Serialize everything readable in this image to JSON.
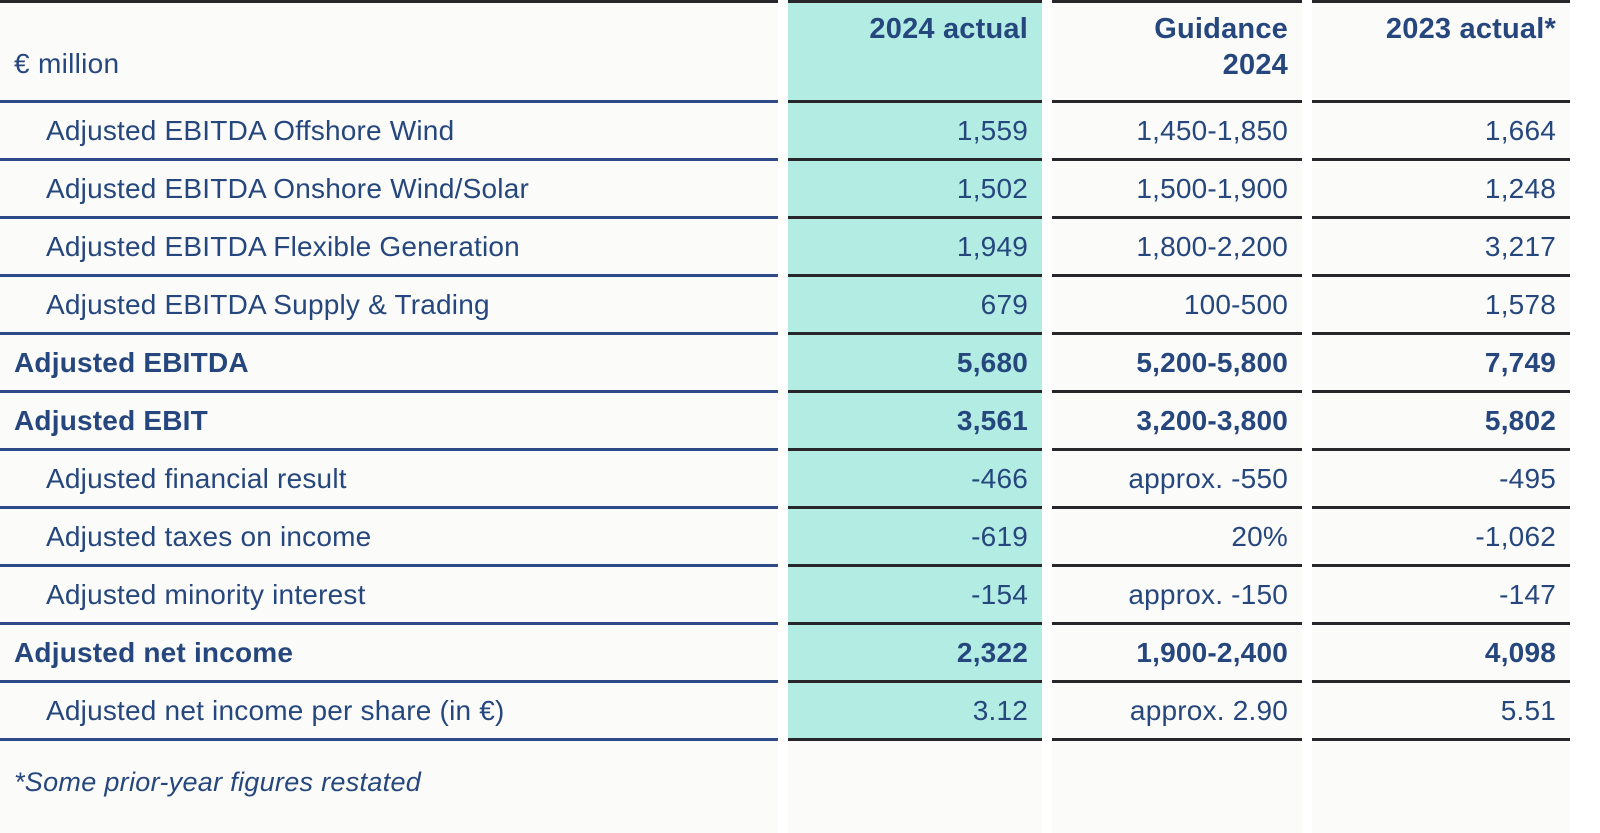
{
  "chart_data": {
    "type": "table",
    "unit_label": "€ million",
    "column_headers": [
      "2024 actual",
      "Guidance\n2024",
      "2023 actual*"
    ],
    "highlighted_column_index": 0,
    "rows": [
      {
        "label": "Adjusted EBITDA Offshore Wind",
        "indent": true,
        "bold": false,
        "values": [
          "1,559",
          "1,450-1,850",
          "1,664"
        ]
      },
      {
        "label": "Adjusted EBITDA Onshore Wind/Solar",
        "indent": true,
        "bold": false,
        "values": [
          "1,502",
          "1,500-1,900",
          "1,248"
        ]
      },
      {
        "label": "Adjusted EBITDA Flexible Generation",
        "indent": true,
        "bold": false,
        "values": [
          "1,949",
          "1,800-2,200",
          "3,217"
        ]
      },
      {
        "label": "Adjusted EBITDA Supply & Trading",
        "indent": true,
        "bold": false,
        "values": [
          "679",
          "100-500",
          "1,578"
        ]
      },
      {
        "label": "Adjusted EBITDA",
        "indent": false,
        "bold": true,
        "values": [
          "5,680",
          "5,200-5,800",
          "7,749"
        ]
      },
      {
        "label": "Adjusted EBIT",
        "indent": false,
        "bold": true,
        "values": [
          "3,561",
          "3,200-3,800",
          "5,802"
        ]
      },
      {
        "label": "Adjusted financial result",
        "indent": true,
        "bold": false,
        "values": [
          "-466",
          "approx. -550",
          "-495"
        ]
      },
      {
        "label": "Adjusted taxes on income",
        "indent": true,
        "bold": false,
        "values": [
          "-619",
          "20%",
          "-1,062"
        ]
      },
      {
        "label": "Adjusted minority interest",
        "indent": true,
        "bold": false,
        "values": [
          "-154",
          "approx. -150",
          "-147"
        ]
      },
      {
        "label": "Adjusted net income",
        "indent": false,
        "bold": true,
        "values": [
          "2,322",
          "1,900-2,400",
          "4,098"
        ]
      },
      {
        "label": "Adjusted net income per share (in €)",
        "indent": true,
        "bold": false,
        "values": [
          "3.12",
          "approx. 2.90",
          "5.51"
        ]
      }
    ],
    "footnote": "*Some prior-year figures restated"
  },
  "colors": {
    "text_navy": "#26477d",
    "highlight_teal": "#b2ece3",
    "label_rule_blue": "#2e4a88",
    "value_rule_dark": "#26262b",
    "cell_background": "#fbfbf9"
  }
}
